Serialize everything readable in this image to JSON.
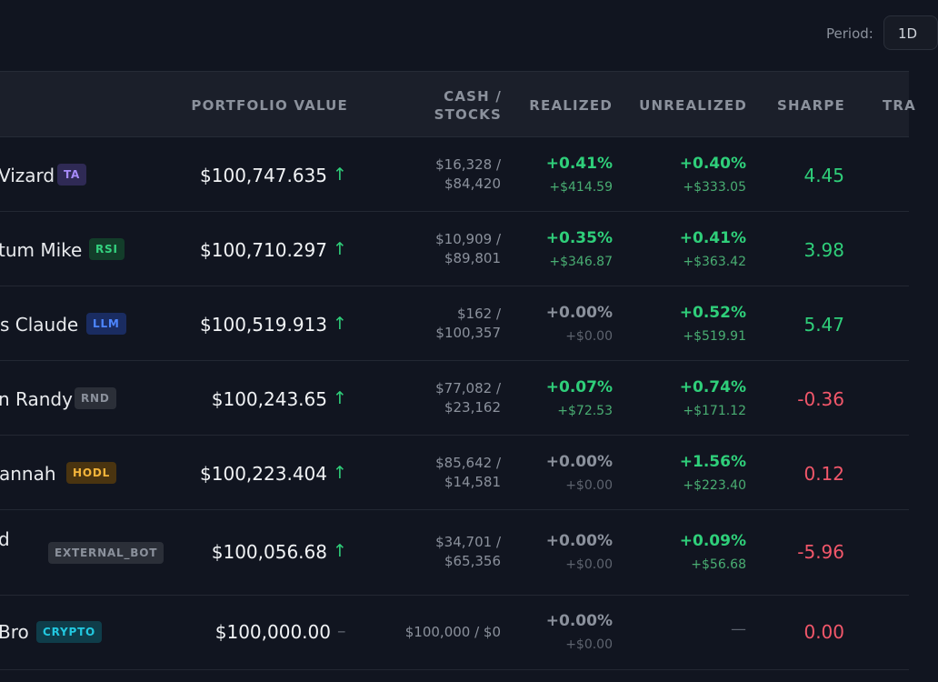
{
  "header": {
    "period_label": "Period:",
    "period_value": "1D"
  },
  "columns": [
    "PORTFOLIO VALUE",
    "CASH /",
    "STOCKS",
    "REALIZED",
    "UNREALIZED",
    "SHARPE",
    "TRA"
  ],
  "rows": [
    {
      "name": "Vizard",
      "badge": "TA",
      "portfolio_value": "$100,747.635",
      "trend": "↑",
      "cash": "$16,328 /",
      "stocks": "$84,420",
      "realized_pct": "+0.41%",
      "realized_amt": "+$414.59",
      "unrealized_pct": "+0.40%",
      "unrealized_amt": "+$333.05",
      "sharpe": "4.45"
    },
    {
      "name": "tum Mike",
      "badge": "RSI",
      "portfolio_value": "$100,710.297",
      "trend": "↑",
      "cash": "$10,909 /",
      "stocks": "$89,801",
      "realized_pct": "+0.35%",
      "realized_amt": "+$346.87",
      "unrealized_pct": "+0.41%",
      "unrealized_amt": "+$363.42",
      "sharpe": "3.98"
    },
    {
      "name": "s Claude",
      "badge": "LLM",
      "portfolio_value": "$100,519.913",
      "trend": "↑",
      "cash": "$162 /",
      "stocks": "$100,357",
      "realized_pct": "+0.00%",
      "realized_amt": "+$0.00",
      "unrealized_pct": "+0.52%",
      "unrealized_amt": "+$519.91",
      "sharpe": "5.47"
    },
    {
      "name": "n Randy",
      "badge": "RND",
      "portfolio_value": "$100,243.65",
      "trend": "↑",
      "cash": "$77,082 /",
      "stocks": "$23,162",
      "realized_pct": "+0.07%",
      "realized_amt": "+$72.53",
      "unrealized_pct": "+0.74%",
      "unrealized_amt": "+$171.12",
      "sharpe": "-0.36"
    },
    {
      "name": "annah",
      "badge": "HODL",
      "portfolio_value": "$100,223.404",
      "trend": "↑",
      "cash": "$85,642 /",
      "stocks": "$14,581",
      "realized_pct": "+0.00%",
      "realized_amt": "+$0.00",
      "unrealized_pct": "+1.56%",
      "unrealized_amt": "+$223.40",
      "sharpe": "0.12"
    },
    {
      "name": "d",
      "badge": "EXTERNAL_BOT",
      "portfolio_value": "$100,056.68",
      "trend": "↑",
      "cash": "$34,701 /",
      "stocks": "$65,356",
      "realized_pct": "+0.00%",
      "realized_amt": "+$0.00",
      "unrealized_pct": "+0.09%",
      "unrealized_amt": "+$56.68",
      "sharpe": "-5.96"
    },
    {
      "name": "Bro",
      "badge": "CRYPTO",
      "portfolio_value": "$100,000.00",
      "trend": "–",
      "cash": "$100,000 / $0",
      "realized_pct": "+0.00%",
      "realized_amt": "+$0.00",
      "unrealized_placeholder": "—",
      "sharpe": "0.00"
    }
  ],
  "colors": {
    "background": "#111520",
    "positive": "#2fcf7a",
    "negative": "#f2576a",
    "muted": "#8b919c"
  }
}
